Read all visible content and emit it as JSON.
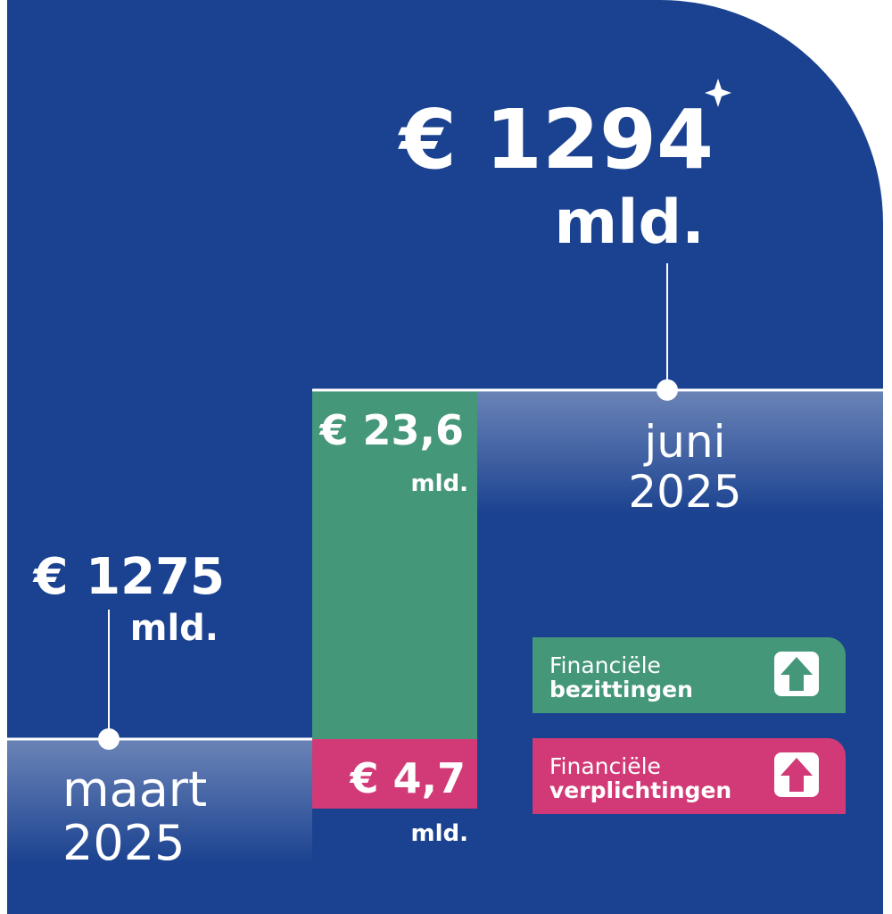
{
  "chart_data": {
    "type": "waterfall",
    "values": [
      1275,
      23.6,
      4.7,
      1294
    ],
    "value_labels": [
      "€ 1275",
      "€ 23,6",
      "€ 4,7",
      "€ 1294"
    ],
    "unit": "mld.",
    "categories": [
      [
        "maart",
        "2025"
      ],
      null,
      null,
      [
        "juni",
        "2025"
      ]
    ],
    "legend": [
      {
        "lines": [
          "Financiële",
          "bezittingen"
        ],
        "color": "#45977a"
      },
      {
        "lines": [
          "Financiële",
          "verplichtingen"
        ],
        "color": "#d13a76"
      }
    ],
    "background": "#1b4290"
  }
}
